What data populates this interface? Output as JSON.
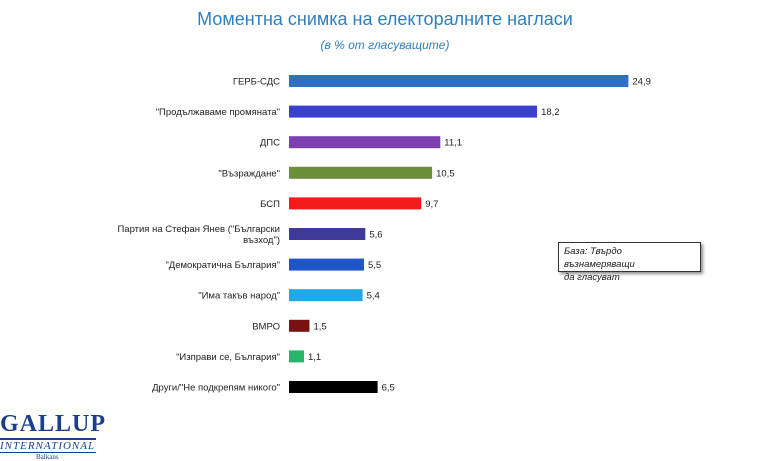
{
  "title": "Моментна снимка на електоралните нагласи",
  "subtitle": "(в % от гласуващите)",
  "note": {
    "line1": "База: Твърдо възнамеряващи",
    "line2": "да гласуват"
  },
  "logo": {
    "main": "GALLUP",
    "sub": "INTERNATIONAL",
    "tiny": "Balkans"
  },
  "chart_data": {
    "type": "bar",
    "orientation": "horizontal",
    "categories": [
      [
        "ГЕРБ-СДС"
      ],
      [
        "\"Продължаваме промяната\""
      ],
      [
        "ДПС"
      ],
      [
        "\"Възраждане\""
      ],
      [
        "БСП"
      ],
      [
        "Партия на Стефан Янев (\"Български",
        "възход\")"
      ],
      [
        "\"Демократична България\""
      ],
      [
        "\"Има такъв народ\""
      ],
      [
        "ВМРО"
      ],
      [
        "\"Изправи се, България\""
      ],
      [
        "Други/\"Не подкрепям никого\""
      ]
    ],
    "values": [
      24.9,
      18.2,
      11.1,
      10.5,
      9.7,
      5.6,
      5.5,
      5.4,
      1.5,
      1.1,
      6.5
    ],
    "value_labels": [
      "24,9",
      "18,2",
      "11,1",
      "10,5",
      "9,7",
      "5,6",
      "5,5",
      "5,4",
      "1,5",
      "1,1",
      "6,5"
    ],
    "colors": [
      "#2f6fc4",
      "#3b3fd0",
      "#7b3fb0",
      "#6b8e3a",
      "#f21c1c",
      "#3d3a9a",
      "#1f55c8",
      "#1fa9e6",
      "#7a1212",
      "#2ab36a",
      "#000000"
    ],
    "grid": false,
    "legend": "none"
  }
}
